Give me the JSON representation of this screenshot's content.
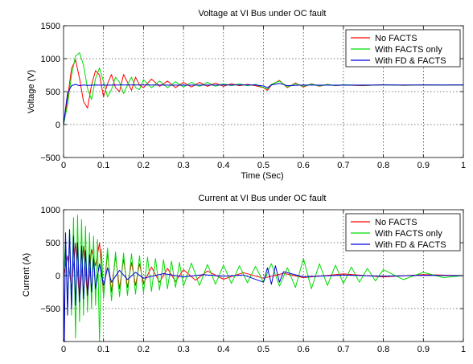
{
  "chart_data": [
    {
      "type": "line",
      "title": "Voltage at VI Bus under OC fault",
      "xlabel": "Time (Sec)",
      "ylabel": "Voltage (V)",
      "xlim": [
        0,
        1
      ],
      "ylim": [
        -500,
        1500
      ],
      "xticks": [
        0,
        0.1,
        0.2,
        0.3,
        0.4,
        0.5,
        0.6,
        0.7,
        0.8,
        0.9,
        1
      ],
      "xtick_labels": [
        "0",
        "0.1",
        "0.2",
        "0.3",
        "0.4",
        "0.5",
        "0.6",
        "0.7",
        "0.8",
        "0.9",
        "1"
      ],
      "yticks": [
        -500,
        0,
        500,
        1000,
        1500
      ],
      "ytick_labels": [
        "−500",
        "0",
        "500",
        "1000",
        "1500"
      ],
      "grid": true,
      "legend_position": "top-right",
      "series": [
        {
          "name": "No FACTS",
          "color": "#ff0000",
          "x": [
            0,
            0.01,
            0.02,
            0.03,
            0.04,
            0.05,
            0.06,
            0.07,
            0.08,
            0.09,
            0.1,
            0.11,
            0.12,
            0.13,
            0.14,
            0.15,
            0.16,
            0.17,
            0.18,
            0.19,
            0.2,
            0.22,
            0.24,
            0.26,
            0.28,
            0.3,
            0.32,
            0.34,
            0.36,
            0.38,
            0.4,
            0.42,
            0.44,
            0.46,
            0.48,
            0.5,
            0.51,
            0.52,
            0.54,
            0.56,
            0.58,
            0.6,
            0.62,
            0.64,
            0.66,
            0.68,
            0.7,
            0.75,
            0.8,
            0.85,
            0.9,
            0.95,
            1
          ],
          "y": [
            0,
            400,
            850,
            980,
            700,
            350,
            250,
            600,
            820,
            750,
            420,
            620,
            760,
            560,
            500,
            760,
            640,
            520,
            720,
            600,
            560,
            690,
            580,
            660,
            560,
            640,
            570,
            640,
            580,
            630,
            580,
            620,
            590,
            610,
            590,
            560,
            520,
            600,
            670,
            560,
            630,
            570,
            620,
            580,
            610,
            590,
            600,
            590,
            605,
            595,
            600,
            598,
            600
          ]
        },
        {
          "name": "With FACTS only",
          "color": "#00dd00",
          "x": [
            0,
            0.01,
            0.02,
            0.03,
            0.04,
            0.05,
            0.06,
            0.07,
            0.08,
            0.09,
            0.1,
            0.11,
            0.12,
            0.13,
            0.14,
            0.15,
            0.16,
            0.17,
            0.18,
            0.19,
            0.2,
            0.22,
            0.24,
            0.26,
            0.28,
            0.3,
            0.32,
            0.34,
            0.36,
            0.38,
            0.4,
            0.42,
            0.44,
            0.46,
            0.48,
            0.5,
            0.51,
            0.52,
            0.54,
            0.56,
            0.58,
            0.6,
            0.62,
            0.64,
            0.66,
            0.68,
            0.7,
            0.75,
            0.8,
            0.85,
            0.9,
            0.95,
            1
          ],
          "y": [
            0,
            300,
            750,
            1040,
            1090,
            900,
            550,
            380,
            700,
            860,
            650,
            420,
            530,
            720,
            640,
            470,
            600,
            720,
            560,
            530,
            680,
            560,
            660,
            560,
            650,
            570,
            640,
            580,
            640,
            580,
            620,
            590,
            620,
            590,
            610,
            560,
            540,
            610,
            660,
            570,
            620,
            580,
            615,
            585,
            610,
            592,
            605,
            595,
            602,
            597,
            600,
            599,
            600
          ]
        },
        {
          "name": "With FD & FACTS",
          "color": "#0000dd",
          "x": [
            0,
            0.01,
            0.02,
            0.03,
            0.04,
            0.05,
            0.06,
            0.08,
            0.1,
            0.15,
            0.2,
            0.3,
            0.4,
            0.48,
            0.5,
            0.51,
            0.52,
            0.54,
            0.56,
            0.6,
            0.7,
            0.8,
            0.9,
            1
          ],
          "y": [
            0,
            480,
            590,
            610,
            590,
            600,
            595,
            600,
            598,
            600,
            600,
            598,
            600,
            600,
            585,
            560,
            600,
            625,
            590,
            600,
            598,
            600,
            600,
            600
          ]
        }
      ]
    },
    {
      "type": "line",
      "title": "Current at VI Bus under OC fault",
      "xlabel": "",
      "ylabel": "Current (A)",
      "xlim": [
        0,
        1
      ],
      "ylim": [
        -1000,
        1000
      ],
      "xticks": [
        0,
        0.1,
        0.2,
        0.3,
        0.4,
        0.5,
        0.6,
        0.7,
        0.8,
        0.9,
        1
      ],
      "xtick_labels": [
        "0",
        "0.1",
        "0.2",
        "0.3",
        "0.4",
        "0.5",
        "0.6",
        "0.7",
        "0.8",
        "0.9",
        "1"
      ],
      "yticks": [
        -1000,
        -500,
        0,
        500,
        1000
      ],
      "ytick_labels": [
        "",
        "−500",
        "0",
        "500",
        "1000"
      ],
      "grid": true,
      "legend_position": "top-right",
      "series": [
        {
          "name": "No FACTS",
          "color": "#ff0000",
          "x": [
            0,
            0.01,
            0.02,
            0.03,
            0.04,
            0.05,
            0.06,
            0.07,
            0.08,
            0.09,
            0.1,
            0.11,
            0.12,
            0.13,
            0.14,
            0.15,
            0.16,
            0.17,
            0.18,
            0.19,
            0.2,
            0.22,
            0.24,
            0.26,
            0.28,
            0.3,
            0.33,
            0.36,
            0.4,
            0.45,
            0.5,
            0.55,
            0.6,
            0.7,
            0.8,
            0.9,
            1
          ],
          "y": [
            0,
            300,
            -200,
            500,
            -400,
            450,
            -350,
            400,
            150,
            500,
            -300,
            350,
            -250,
            300,
            -200,
            250,
            -180,
            200,
            -150,
            180,
            -120,
            130,
            -100,
            110,
            -90,
            90,
            -70,
            70,
            -55,
            45,
            -40,
            35,
            -30,
            25,
            -20,
            15,
            0
          ]
        },
        {
          "name": "With FACTS only",
          "color": "#00dd00",
          "x": [
            0,
            0.005,
            0.01,
            0.015,
            0.02,
            0.025,
            0.03,
            0.035,
            0.04,
            0.045,
            0.05,
            0.055,
            0.06,
            0.065,
            0.07,
            0.075,
            0.08,
            0.085,
            0.09,
            0.095,
            0.1,
            0.11,
            0.12,
            0.13,
            0.14,
            0.15,
            0.16,
            0.17,
            0.18,
            0.19,
            0.2,
            0.21,
            0.22,
            0.23,
            0.24,
            0.25,
            0.26,
            0.27,
            0.28,
            0.29,
            0.3,
            0.32,
            0.34,
            0.36,
            0.38,
            0.4,
            0.42,
            0.44,
            0.46,
            0.48,
            0.5,
            0.52,
            0.54,
            0.56,
            0.58,
            0.6,
            0.62,
            0.64,
            0.66,
            0.68,
            0.7,
            0.72,
            0.74,
            0.76,
            0.78,
            0.8,
            0.85,
            0.9,
            0.95,
            1
          ],
          "y": [
            0,
            500,
            -400,
            700,
            -600,
            880,
            -950,
            920,
            -700,
            850,
            -600,
            750,
            -550,
            650,
            -500,
            600,
            -450,
            550,
            -1000,
            400,
            -350,
            420,
            -380,
            360,
            -320,
            340,
            -300,
            330,
            -280,
            300,
            -260,
            280,
            -240,
            260,
            -220,
            240,
            -200,
            220,
            -180,
            200,
            -160,
            190,
            -150,
            170,
            -130,
            160,
            -120,
            150,
            -110,
            140,
            -100,
            180,
            -160,
            120,
            -180,
            260,
            -200,
            180,
            -150,
            160,
            -120,
            130,
            -100,
            110,
            -80,
            90,
            -60,
            50,
            -30,
            0
          ]
        },
        {
          "name": "With FD & FACTS",
          "color": "#0000dd",
          "x": [
            0,
            0.002,
            0.005,
            0.01,
            0.015,
            0.02,
            0.025,
            0.03,
            0.035,
            0.04,
            0.045,
            0.05,
            0.055,
            0.06,
            0.065,
            0.07,
            0.075,
            0.08,
            0.09,
            0.1,
            0.11,
            0.12,
            0.14,
            0.16,
            0.18,
            0.2,
            0.25,
            0.3,
            0.35,
            0.4,
            0.45,
            0.5,
            0.51,
            0.52,
            0.53,
            0.54,
            0.55,
            0.6,
            0.7,
            0.8,
            0.9,
            1
          ],
          "y": [
            0,
            -1000,
            650,
            -600,
            700,
            -500,
            600,
            -450,
            500,
            -400,
            450,
            -350,
            380,
            -300,
            320,
            -250,
            260,
            -200,
            180,
            -150,
            120,
            -100,
            80,
            -60,
            50,
            -40,
            30,
            -20,
            15,
            -10,
            10,
            -100,
            120,
            -130,
            150,
            -100,
            60,
            -20,
            10,
            -8,
            5,
            0
          ]
        }
      ]
    }
  ]
}
